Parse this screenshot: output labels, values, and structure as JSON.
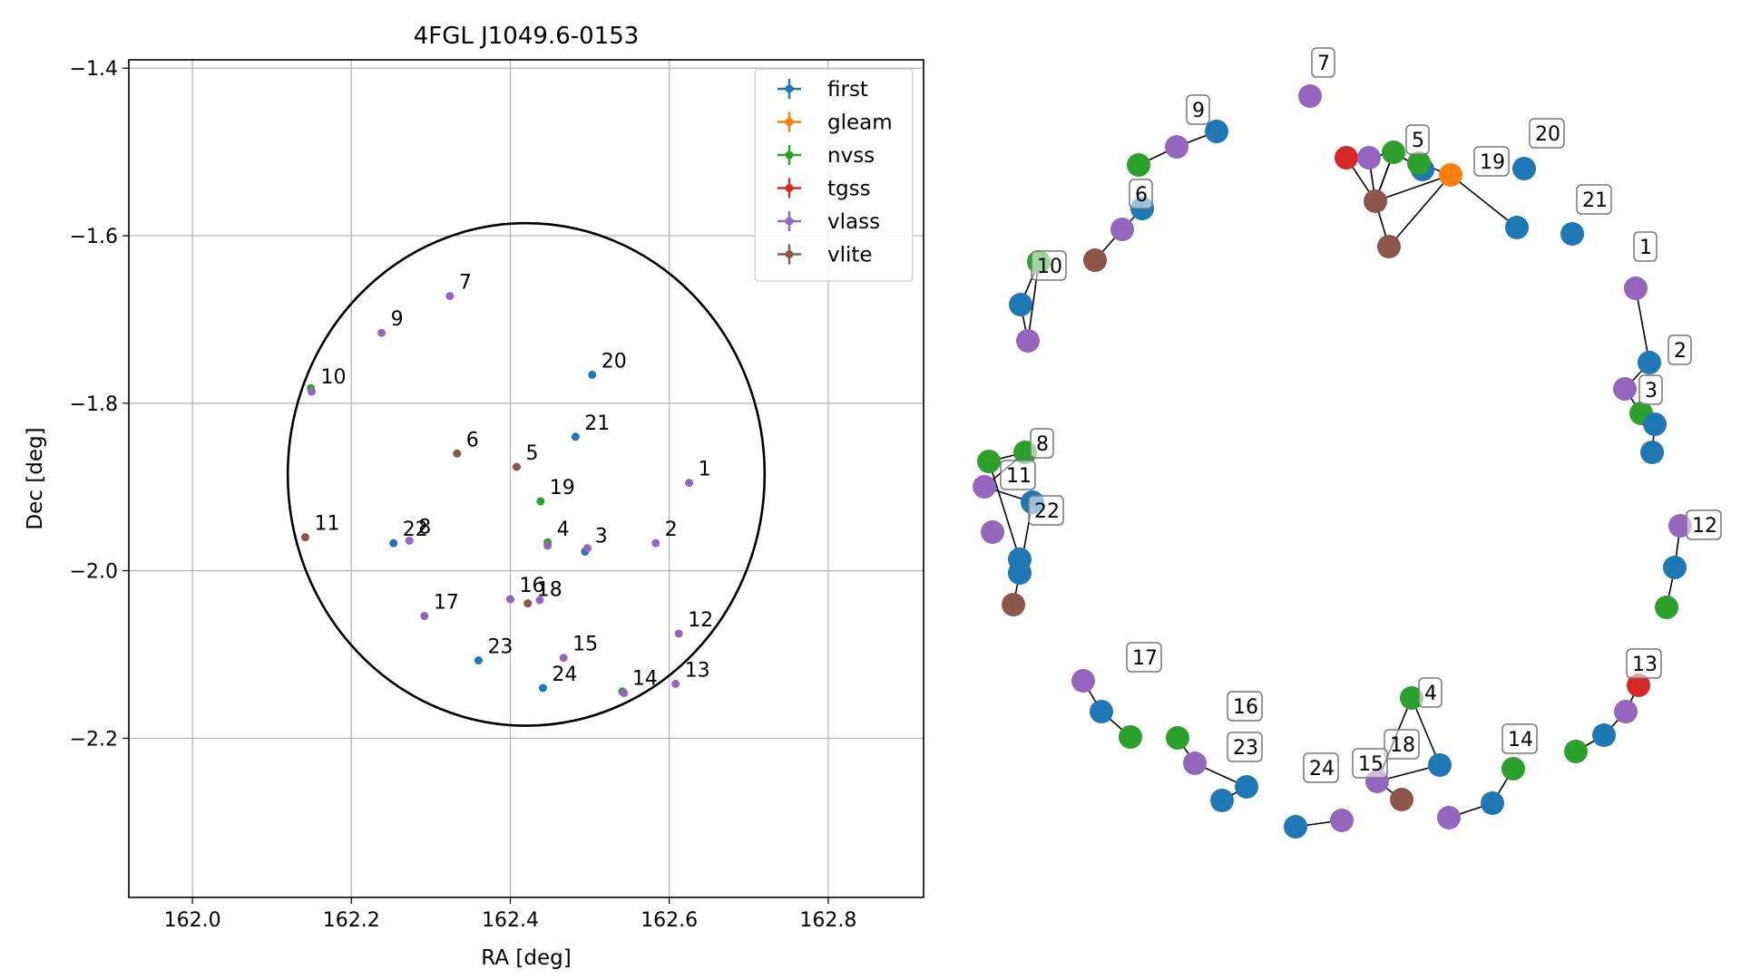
{
  "chart_data": [
    {
      "type": "scatter",
      "title": "4FGL J1049.6-0153",
      "xlabel": "RA [deg]",
      "ylabel": "Dec [deg]",
      "xlim": [
        161.92,
        162.92
      ],
      "ylim": [
        -2.39,
        -1.39
      ],
      "xticks": [
        162.0,
        162.2,
        162.4,
        162.6,
        162.8
      ],
      "xtick_labels": [
        "162.0",
        "162.2",
        "162.4",
        "162.6",
        "162.8"
      ],
      "yticks": [
        -1.4,
        -1.6,
        -1.8,
        -2.0,
        -2.2
      ],
      "ytick_labels": [
        "−1.4",
        "−1.6",
        "−1.8",
        "−2.0",
        "−2.2"
      ],
      "grid": true,
      "legend_position": "top-right",
      "circle": {
        "center": [
          162.42,
          -1.885
        ],
        "radius_deg": 0.3
      },
      "series": [
        {
          "name": "first",
          "color": "#1f77b4",
          "points": [
            [
              162.503,
              -1.766
            ],
            [
              162.482,
              -1.84
            ],
            [
              162.494,
              -1.977
            ],
            [
              162.253,
              -1.967
            ],
            [
              162.36,
              -2.107
            ],
            [
              162.441,
              -2.14
            ]
          ]
        },
        {
          "name": "gleam",
          "color": "#ff7f0e",
          "points": []
        },
        {
          "name": "nvss",
          "color": "#2ca02c",
          "points": [
            [
              162.149,
              -1.782
            ],
            [
              162.438,
              -1.917
            ],
            [
              162.447,
              -1.966
            ],
            [
              162.541,
              -2.144
            ]
          ]
        },
        {
          "name": "tgss",
          "color": "#d62728",
          "points": []
        },
        {
          "name": "vlass",
          "color": "#9467bd",
          "points": [
            [
              162.625,
              -1.895
            ],
            [
              162.583,
              -1.967
            ],
            [
              162.497,
              -1.973
            ],
            [
              162.447,
              -1.97
            ],
            [
              162.324,
              -1.672
            ],
            [
              162.238,
              -1.716
            ],
            [
              162.15,
              -1.786
            ],
            [
              162.273,
              -1.964
            ],
            [
              162.292,
              -2.054
            ],
            [
              162.4,
              -2.034
            ],
            [
              162.467,
              -2.104
            ],
            [
              162.612,
              -2.075
            ],
            [
              162.608,
              -2.135
            ],
            [
              162.543,
              -2.146
            ],
            [
              162.437,
              -2.035
            ]
          ]
        },
        {
          "name": "vlite",
          "color": "#8c564b",
          "points": [
            [
              162.333,
              -1.86
            ],
            [
              162.408,
              -1.876
            ],
            [
              162.142,
              -1.96
            ],
            [
              162.422,
              -2.039
            ]
          ]
        }
      ],
      "labels": [
        {
          "text": "1",
          "x": 162.625,
          "y": -1.895
        },
        {
          "text": "2",
          "x": 162.583,
          "y": -1.967
        },
        {
          "text": "3",
          "x": 162.495,
          "y": -1.975
        },
        {
          "text": "4",
          "x": 162.447,
          "y": -1.967
        },
        {
          "text": "5",
          "x": 162.408,
          "y": -1.876
        },
        {
          "text": "6",
          "x": 162.333,
          "y": -1.86
        },
        {
          "text": "7",
          "x": 162.324,
          "y": -1.672
        },
        {
          "text": "8",
          "x": 162.273,
          "y": -1.964
        },
        {
          "text": "9",
          "x": 162.238,
          "y": -1.716
        },
        {
          "text": "10",
          "x": 162.15,
          "y": -1.785
        },
        {
          "text": "11",
          "x": 162.142,
          "y": -1.96
        },
        {
          "text": "12",
          "x": 162.612,
          "y": -2.075
        },
        {
          "text": "13",
          "x": 162.608,
          "y": -2.135
        },
        {
          "text": "14",
          "x": 162.542,
          "y": -2.145
        },
        {
          "text": "15",
          "x": 162.467,
          "y": -2.104
        },
        {
          "text": "16",
          "x": 162.4,
          "y": -2.034
        },
        {
          "text": "17",
          "x": 162.292,
          "y": -2.054
        },
        {
          "text": "18",
          "x": 162.422,
          "y": -2.039
        },
        {
          "text": "19",
          "x": 162.438,
          "y": -1.917
        },
        {
          "text": "20",
          "x": 162.503,
          "y": -1.766
        },
        {
          "text": "21",
          "x": 162.482,
          "y": -1.84
        },
        {
          "text": "22",
          "x": 162.253,
          "y": -1.967
        },
        {
          "text": "23",
          "x": 162.36,
          "y": -2.107
        },
        {
          "text": "24",
          "x": 162.441,
          "y": -2.14
        }
      ]
    },
    {
      "type": "diagram",
      "nodes": [
        {
          "label": "1",
          "color": "purple",
          "labeled": true
        },
        {
          "color": "blue"
        },
        {
          "label": "2",
          "color": "purple",
          "labeled": true
        },
        {
          "label": "3",
          "color": "green",
          "labeled": true
        },
        {
          "color": "blue"
        },
        {
          "color": "blue"
        },
        {
          "color": "purple"
        },
        {
          "label": "12",
          "color": "blue",
          "labeled": true
        },
        {
          "color": "green"
        },
        {
          "color": "red"
        },
        {
          "label": "13",
          "color": "purple",
          "labeled": true
        },
        {
          "color": "blue"
        },
        {
          "color": "green"
        },
        {
          "label": "14",
          "color": "green",
          "labeled": true
        },
        {
          "color": "blue"
        },
        {
          "color": "purple"
        },
        {
          "color": "green"
        },
        {
          "label": "4",
          "color": "blue",
          "labeled": true
        },
        {
          "color": "purple"
        },
        {
          "label": "18",
          "color": "brown",
          "labeled": true
        },
        {
          "label": "15",
          "color": "purple",
          "labeled": true
        },
        {
          "label": "24",
          "color": "blue",
          "labeled": true
        },
        {
          "color": "green"
        },
        {
          "label": "16",
          "color": "purple",
          "labeled": true
        },
        {
          "label": "23",
          "color": "blue",
          "labeled": true
        },
        {
          "color": "blue"
        },
        {
          "color": "purple"
        },
        {
          "label": "17",
          "color": "blue",
          "labeled": true
        },
        {
          "color": "green"
        },
        {
          "color": "green"
        },
        {
          "color": "green"
        },
        {
          "label": "11",
          "color": "purple",
          "labeled": true
        },
        {
          "color": "blue"
        },
        {
          "label": "8",
          "color": "purple",
          "labeled": true
        },
        {
          "label": "22",
          "color": "blue",
          "labeled": true
        },
        {
          "color": "blue"
        },
        {
          "color": "brown"
        },
        {
          "color": "green"
        },
        {
          "label": "10",
          "color": "blue",
          "labeled": true
        },
        {
          "color": "purple"
        },
        {
          "color": "brown"
        },
        {
          "label": "6",
          "color": "purple",
          "labeled": true
        },
        {
          "color": "blue"
        },
        {
          "color": "green"
        },
        {
          "label": "9",
          "color": "purple",
          "labeled": true
        },
        {
          "color": "blue"
        },
        {
          "label": "7",
          "color": "purple",
          "labeled": true
        },
        {
          "color": "red"
        },
        {
          "color": "purple"
        },
        {
          "label": "5",
          "color": "green",
          "labeled": true
        },
        {
          "color": "blue"
        },
        {
          "color": "green"
        },
        {
          "label": "19",
          "color": "orange",
          "labeled": true
        },
        {
          "color": "brown"
        },
        {
          "color": "brown"
        },
        {
          "color": "blue"
        },
        {
          "label": "20",
          "color": "blue",
          "labeled": true
        },
        {
          "label": "21",
          "color": "blue",
          "labeled": true
        }
      ]
    }
  ]
}
